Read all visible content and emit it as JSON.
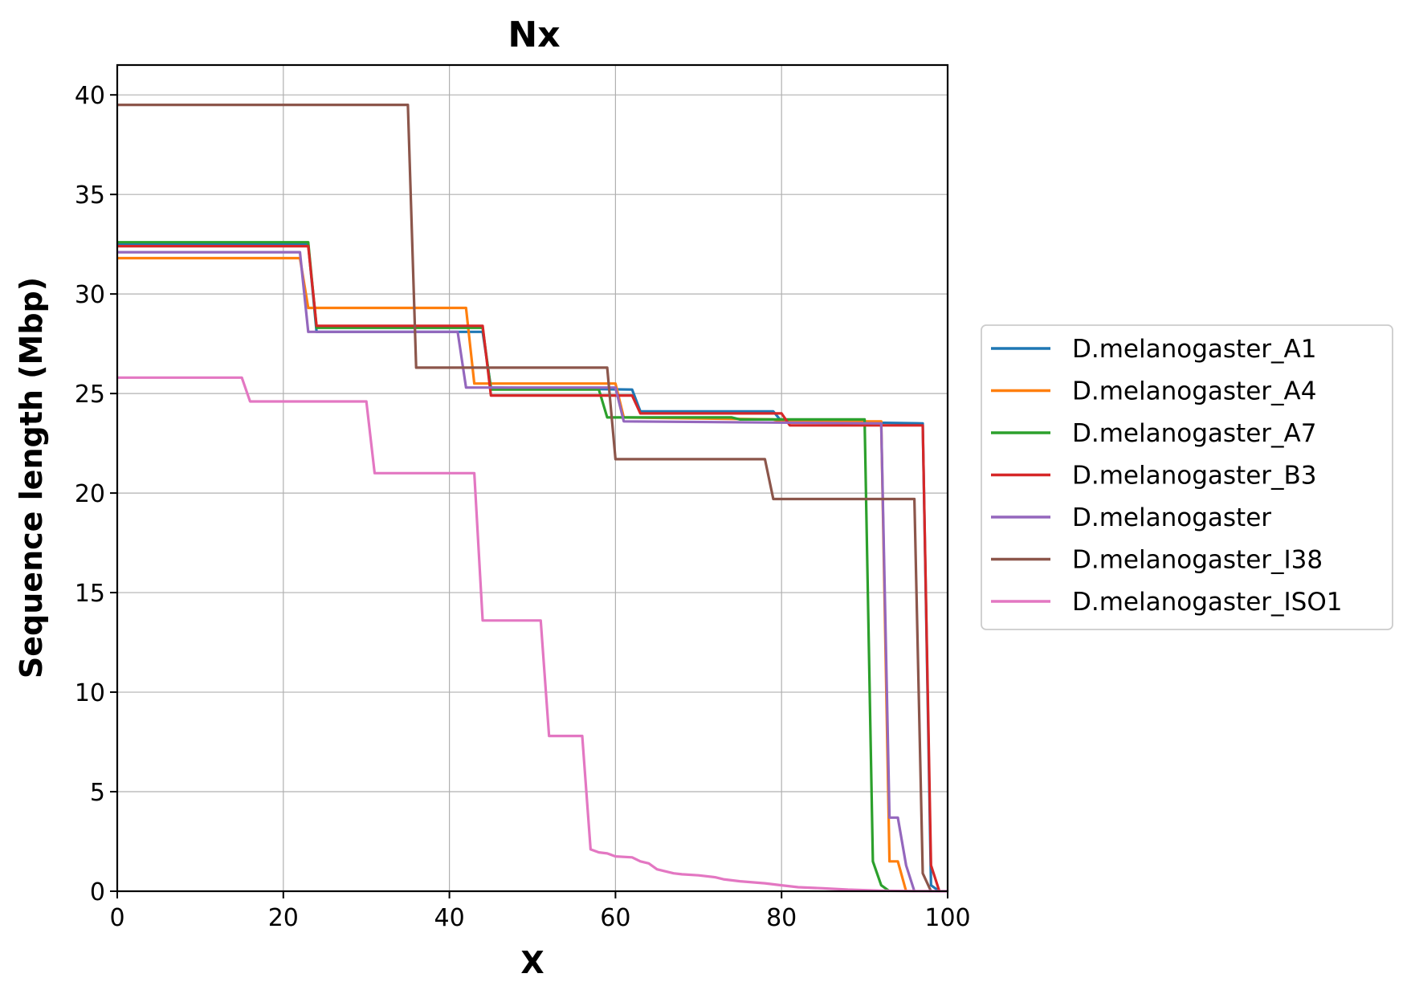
{
  "chart_data": {
    "type": "line",
    "title": "Nx",
    "xlabel": "X",
    "ylabel": "Sequence length (Mbp)",
    "xlim": [
      0,
      100
    ],
    "ylim": [
      0,
      41.5
    ],
    "xticks": [
      0,
      20,
      40,
      60,
      80,
      100
    ],
    "xtick_labels": [
      "0",
      "20",
      "40",
      "60",
      "80",
      "100"
    ],
    "yticks": [
      0,
      5,
      10,
      15,
      20,
      25,
      30,
      35,
      40
    ],
    "ytick_labels": [
      "0",
      "5",
      "10",
      "15",
      "20",
      "25",
      "30",
      "35",
      "40"
    ],
    "grid": true,
    "legend_position": "right, outside plot",
    "series": [
      {
        "name": "D.melanogaster_A1",
        "color": "#1f77b4",
        "points": [
          [
            0,
            32.5
          ],
          [
            23,
            32.5
          ],
          [
            24,
            28.1
          ],
          [
            44,
            28.1
          ],
          [
            45,
            25.3
          ],
          [
            62,
            25.2
          ],
          [
            63,
            24.1
          ],
          [
            79,
            24.1
          ],
          [
            80,
            23.6
          ],
          [
            97,
            23.5
          ],
          [
            98,
            0.3
          ],
          [
            99,
            0
          ]
        ]
      },
      {
        "name": "D.melanogaster_A4",
        "color": "#ff7f0e",
        "points": [
          [
            0,
            31.8
          ],
          [
            22,
            31.8
          ],
          [
            23,
            29.3
          ],
          [
            42,
            29.3
          ],
          [
            43,
            25.5
          ],
          [
            60,
            25.5
          ],
          [
            61,
            23.8
          ],
          [
            79,
            23.7
          ],
          [
            80,
            23.6
          ],
          [
            92,
            23.6
          ],
          [
            93,
            1.5
          ],
          [
            94,
            1.5
          ],
          [
            95,
            0
          ]
        ]
      },
      {
        "name": "D.melanogaster_A7",
        "color": "#2ca02c",
        "points": [
          [
            0,
            32.6
          ],
          [
            23,
            32.6
          ],
          [
            24,
            28.3
          ],
          [
            44,
            28.3
          ],
          [
            45,
            25.2
          ],
          [
            58,
            25.2
          ],
          [
            59,
            23.8
          ],
          [
            74,
            23.8
          ],
          [
            75,
            23.7
          ],
          [
            90,
            23.7
          ],
          [
            91,
            1.5
          ],
          [
            92,
            0.3
          ],
          [
            93,
            0
          ]
        ]
      },
      {
        "name": "D.melanogaster_B3",
        "color": "#d62728",
        "points": [
          [
            0,
            32.4
          ],
          [
            23,
            32.4
          ],
          [
            24,
            28.4
          ],
          [
            44,
            28.4
          ],
          [
            45,
            24.9
          ],
          [
            62,
            24.9
          ],
          [
            63,
            24.0
          ],
          [
            80,
            24.0
          ],
          [
            81,
            23.4
          ],
          [
            97,
            23.4
          ],
          [
            98,
            1.3
          ],
          [
            99,
            0
          ]
        ]
      },
      {
        "name": "D.melanogaster",
        "color": "#9467bd",
        "points": [
          [
            0,
            32.1
          ],
          [
            22,
            32.1
          ],
          [
            23,
            28.1
          ],
          [
            41,
            28.1
          ],
          [
            42,
            25.3
          ],
          [
            60,
            25.3
          ],
          [
            61,
            23.6
          ],
          [
            92,
            23.5
          ],
          [
            93,
            3.7
          ],
          [
            94,
            3.7
          ],
          [
            95,
            1.3
          ],
          [
            96,
            0
          ]
        ]
      },
      {
        "name": "D.melanogaster_I38",
        "color": "#8c564b",
        "points": [
          [
            0,
            39.5
          ],
          [
            35,
            39.5
          ],
          [
            36,
            26.3
          ],
          [
            59,
            26.3
          ],
          [
            60,
            21.7
          ],
          [
            78,
            21.7
          ],
          [
            79,
            19.7
          ],
          [
            96,
            19.7
          ],
          [
            97,
            0.9
          ],
          [
            98,
            0
          ]
        ]
      },
      {
        "name": "D.melanogaster_ISO1",
        "color": "#e377c2",
        "points": [
          [
            0,
            25.8
          ],
          [
            15,
            25.8
          ],
          [
            16,
            24.6
          ],
          [
            30,
            24.6
          ],
          [
            31,
            21.0
          ],
          [
            43,
            21.0
          ],
          [
            44,
            13.6
          ],
          [
            51,
            13.6
          ],
          [
            52,
            7.8
          ],
          [
            56,
            7.8
          ],
          [
            57,
            2.1
          ],
          [
            58,
            1.95
          ],
          [
            59,
            1.9
          ],
          [
            60,
            1.75
          ],
          [
            62,
            1.7
          ],
          [
            63,
            1.5
          ],
          [
            64,
            1.4
          ],
          [
            65,
            1.1
          ],
          [
            66,
            1.0
          ],
          [
            67,
            0.9
          ],
          [
            68,
            0.85
          ],
          [
            70,
            0.8
          ],
          [
            72,
            0.7
          ],
          [
            73,
            0.6
          ],
          [
            75,
            0.5
          ],
          [
            78,
            0.4
          ],
          [
            80,
            0.3
          ],
          [
            82,
            0.2
          ],
          [
            85,
            0.15
          ],
          [
            88,
            0.08
          ],
          [
            92,
            0.03
          ],
          [
            96,
            0.01
          ],
          [
            100,
            0
          ]
        ]
      }
    ]
  }
}
